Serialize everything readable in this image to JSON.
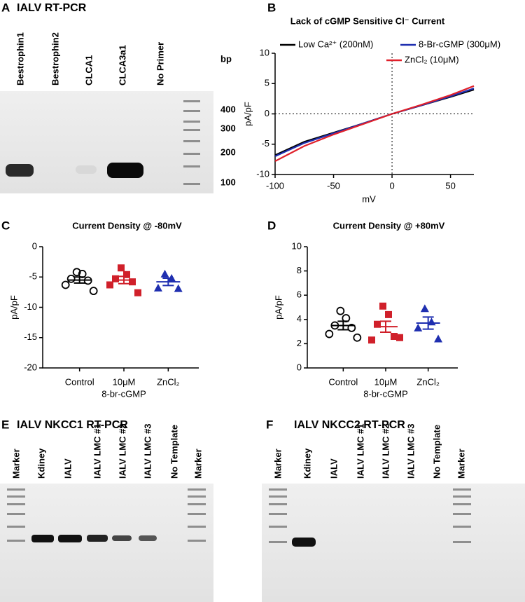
{
  "panels": {
    "a": {
      "letter": "A",
      "title": "IALV RT-PCR",
      "lanes": [
        "Bestrophin1",
        "Bestrophin2",
        "CLCA1",
        "CLCA3a1",
        "No Primer"
      ],
      "size_unit": "bp",
      "markers": [
        "400",
        "300",
        "200",
        "100"
      ]
    },
    "e": {
      "letter": "E",
      "title": "IALV NKCC1 RT-PCR",
      "lanes": [
        "Marker",
        "Kdiney",
        "IALV",
        "IALV LMC #1",
        "IALV LMC #2",
        "IALV LMC #3",
        "No Template",
        "Marker"
      ]
    },
    "f": {
      "letter": "F",
      "title": "IALV NKCC2 RT-PCR",
      "lanes": [
        "Marker",
        "Kdiney",
        "IALV",
        "IALV LMC #1",
        "IALV LMC #2",
        "IALV LMC #3",
        "No Template",
        "Marker"
      ]
    }
  },
  "chart_data": [
    {
      "type": "line",
      "panel": "B",
      "title": "Lack of cGMP Sensitive Cl⁻ Current",
      "x_label": "mV",
      "y_label": "pA/pF",
      "x": [
        -100,
        -75,
        -50,
        -25,
        0,
        25,
        50,
        70
      ],
      "series": [
        {
          "name": "Low Ca²⁺ (200nM)",
          "color": "#000000",
          "values": [
            -6.8,
            -4.6,
            -3.1,
            -1.6,
            0,
            1.4,
            2.8,
            4.0
          ]
        },
        {
          "name": "8-Br-cGMP (300μM)",
          "color": "#1f2fb0",
          "values": [
            -7.0,
            -4.8,
            -3.2,
            -1.6,
            0,
            1.4,
            2.9,
            4.2
          ]
        },
        {
          "name": "ZnCl₂ (10μM)",
          "color": "#e0202a",
          "values": [
            -7.8,
            -5.3,
            -3.4,
            -1.7,
            0,
            1.5,
            3.1,
            4.6
          ]
        }
      ],
      "xlim": [
        -100,
        70
      ],
      "xticks": [
        -100,
        -50,
        0,
        50
      ],
      "ylim": [
        -10,
        10
      ],
      "yticks": [
        -10,
        -5,
        0,
        5,
        10
      ],
      "reference_x": 0,
      "reference_y": 0
    },
    {
      "type": "dot",
      "panel": "C",
      "title": "Current Density @ -80mV",
      "y_label": "pA/pF",
      "categories": [
        [
          "Control"
        ],
        [
          "10μM",
          "8-br-cGMP"
        ],
        [
          "ZnCl₂"
        ]
      ],
      "colors": [
        "#000000",
        "#d0202a",
        "#1f2fb0"
      ],
      "markers": [
        "open-circle",
        "square",
        "triangle"
      ],
      "points": [
        [
          -4.2,
          -4.5,
          -5.3,
          -5.6,
          -6.3,
          -7.3
        ],
        [
          -3.5,
          -4.6,
          -5.3,
          -5.8,
          -6.3,
          -7.6
        ],
        [
          -4.5,
          -5.2,
          -6.8,
          -6.9
        ]
      ],
      "means": [
        -5.5,
        -5.5,
        -5.8
      ],
      "sems": [
        0.5,
        0.6,
        0.6
      ],
      "ylim": [
        -20,
        0
      ],
      "yticks": [
        -20,
        -15,
        -10,
        -5,
        0
      ]
    },
    {
      "type": "dot",
      "panel": "D",
      "title": "Current Density @ +80mV",
      "y_label": "pA/pF",
      "categories": [
        [
          "Control"
        ],
        [
          "10μM",
          "8-br-cGMP"
        ],
        [
          "ZnCl₂"
        ]
      ],
      "colors": [
        "#000000",
        "#d0202a",
        "#1f2fb0"
      ],
      "markers": [
        "open-circle",
        "square",
        "triangle"
      ],
      "points": [
        [
          4.7,
          4.1,
          3.5,
          3.3,
          2.8,
          2.5
        ],
        [
          5.1,
          4.4,
          3.6,
          2.6,
          2.3,
          2.5
        ],
        [
          4.9,
          3.8,
          3.3,
          2.4
        ]
      ],
      "means": [
        3.5,
        3.4,
        3.7
      ],
      "sems": [
        0.35,
        0.45,
        0.5
      ],
      "ylim": [
        0,
        10
      ],
      "yticks": [
        0,
        2,
        4,
        6,
        8,
        10
      ]
    }
  ]
}
